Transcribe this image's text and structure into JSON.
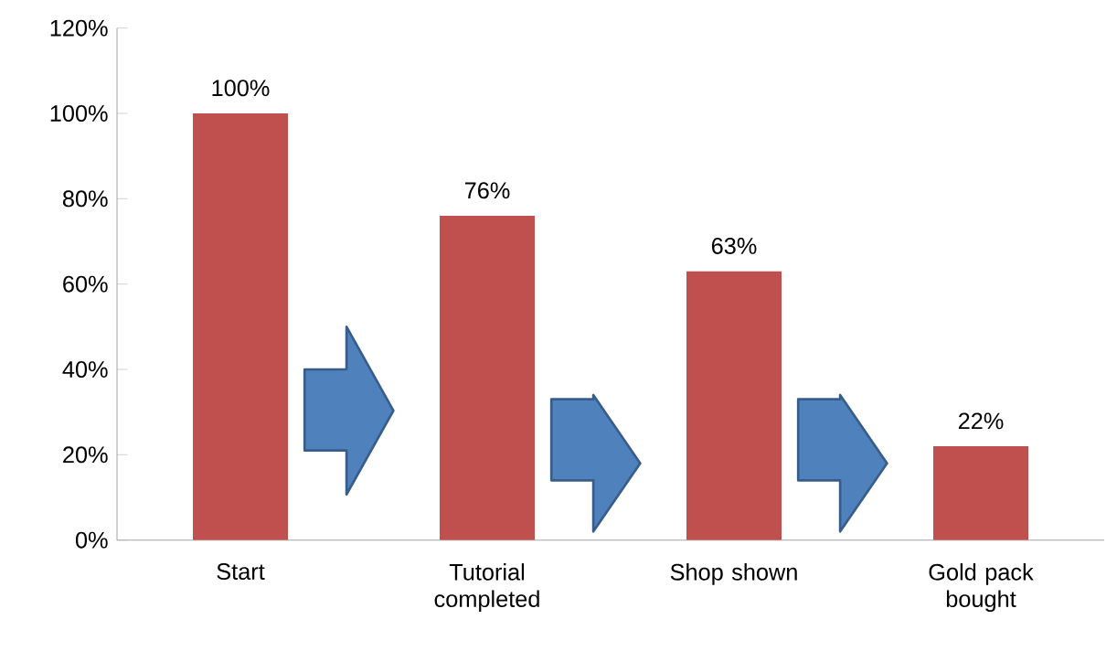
{
  "chart_data": {
    "type": "bar",
    "categories": [
      "Start",
      "Tutorial completed",
      "Shop shown",
      "Gold pack bought"
    ],
    "values": [
      100,
      76,
      63,
      22
    ],
    "value_labels": [
      "100%",
      "76%",
      "63%",
      "22%"
    ],
    "color": "#c0504d",
    "ylim": [
      0,
      120
    ],
    "yticks": [
      {
        "value": 0,
        "label": "0%"
      },
      {
        "value": 20,
        "label": "20%"
      },
      {
        "value": 40,
        "label": "40%"
      },
      {
        "value": 60,
        "label": "60%"
      },
      {
        "value": 80,
        "label": "80%"
      },
      {
        "value": 100,
        "label": "100%"
      },
      {
        "value": 120,
        "label": "120%"
      }
    ],
    "grid": false
  }
}
